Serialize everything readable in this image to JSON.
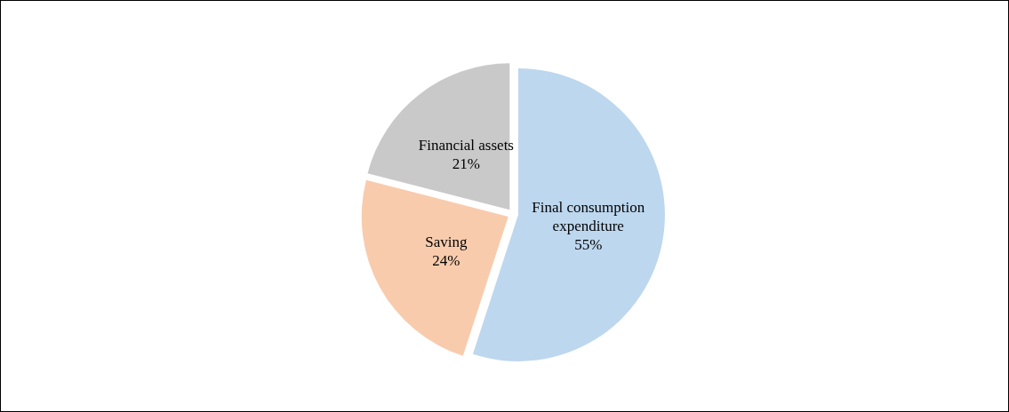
{
  "chart_data": {
    "type": "pie",
    "categories": [
      "Final consumption expenditure",
      "Saving",
      "Financial assets"
    ],
    "values": [
      55,
      24,
      21
    ],
    "colors": [
      "#bdd7ee",
      "#f8cbad",
      "#c9c9c9"
    ],
    "value_labels": [
      "55%",
      "24%",
      "21%"
    ],
    "legend": false
  }
}
